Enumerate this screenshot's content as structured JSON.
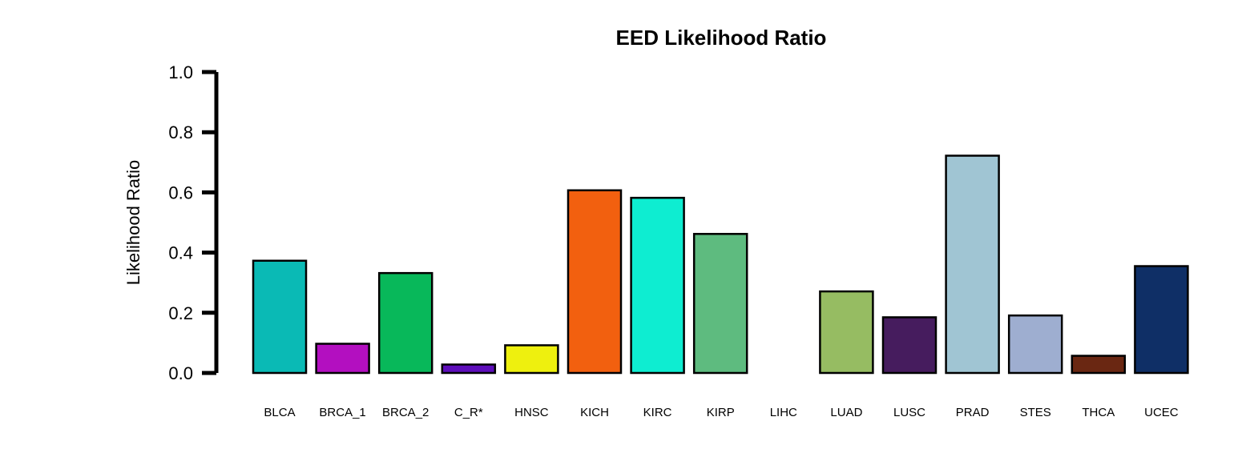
{
  "chart_data": {
    "type": "bar",
    "title": "EED Likelihood Ratio",
    "xlabel": "",
    "ylabel": "Likelihood Ratio",
    "ylim": [
      0,
      1
    ],
    "yticks": [
      "0.0",
      "0.2",
      "0.4",
      "0.6",
      "0.8",
      "1.0"
    ],
    "grid": false,
    "categories": [
      "BLCA",
      "BRCA_1",
      "BRCA_2",
      "C_R*",
      "HNSC",
      "KICH",
      "KIRC",
      "KIRP",
      "LIHC",
      "LUAD",
      "LUSC",
      "PRAD",
      "STES",
      "THCA",
      "UCEC"
    ],
    "values": [
      0.373,
      0.097,
      0.332,
      0.028,
      0.092,
      0.607,
      0.582,
      0.462,
      0.0,
      0.271,
      0.185,
      0.722,
      0.191,
      0.057,
      0.355
    ],
    "colors": [
      "#0ABAB5",
      "#B30FC0",
      "#08B85A",
      "#5E0EBA",
      "#EEF00E",
      "#F2600F",
      "#0EEDD1",
      "#5EBB7F",
      "#000000",
      "#96BC62",
      "#461C5E",
      "#A0C5D3",
      "#9EAED0",
      "#6A2712",
      "#0F2F66"
    ]
  }
}
